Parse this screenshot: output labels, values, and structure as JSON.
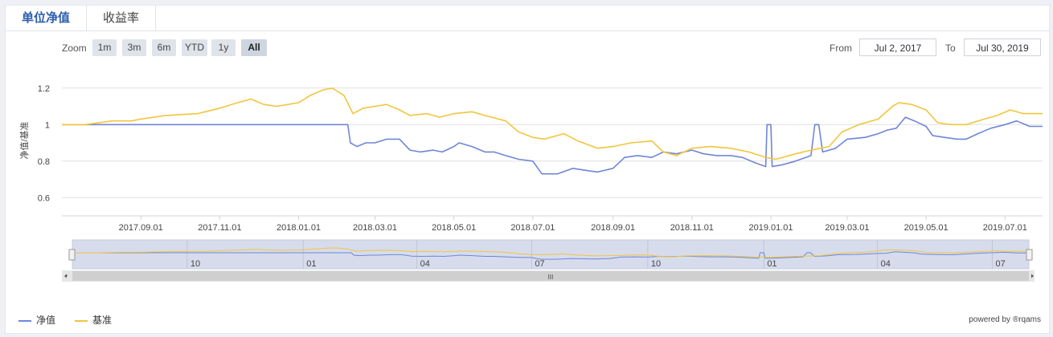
{
  "tabs": [
    {
      "label": "单位净值",
      "active": true
    },
    {
      "label": "收益率",
      "active": false
    }
  ],
  "zoom": {
    "label": "Zoom",
    "buttons": [
      "1m",
      "3m",
      "6m",
      "YTD",
      "1y",
      "All"
    ],
    "selected": "All"
  },
  "range": {
    "from_label": "From",
    "from_value": "Jul 2, 2017",
    "to_label": "To",
    "to_value": "Jul 30, 2019"
  },
  "credit": "powered by ®rqams",
  "colors": {
    "nav": "#6f86d6",
    "benchmark": "#f2c53d"
  },
  "chart_data": {
    "type": "line",
    "ylabel": "净值/基准",
    "ylim": [
      0.5,
      1.3
    ],
    "yticks": [
      0.6,
      0.8,
      1,
      1.2
    ],
    "xlim": [
      "2017-07-02",
      "2019-07-30"
    ],
    "xticks": [
      "2017.09.01",
      "2017.11.01",
      "2018.01.01",
      "2018.03.01",
      "2018.05.01",
      "2018.07.01",
      "2018.09.01",
      "2018.11.01",
      "2019.01.01",
      "2019.03.01",
      "2019.05.01",
      "2019.07.01"
    ],
    "grid": true,
    "legend_position": "bottom-left",
    "series": [
      {
        "name": "净值",
        "points": [
          [
            "2017-07-02",
            1.0
          ],
          [
            "2017-09-01",
            1.0
          ],
          [
            "2017-11-01",
            1.0
          ],
          [
            "2018-01-01",
            1.0
          ],
          [
            "2018-02-08",
            1.0
          ],
          [
            "2018-02-10",
            0.9
          ],
          [
            "2018-02-15",
            0.88
          ],
          [
            "2018-02-22",
            0.9
          ],
          [
            "2018-03-01",
            0.9
          ],
          [
            "2018-03-10",
            0.92
          ],
          [
            "2018-03-20",
            0.92
          ],
          [
            "2018-03-28",
            0.86
          ],
          [
            "2018-04-05",
            0.85
          ],
          [
            "2018-04-15",
            0.86
          ],
          [
            "2018-04-22",
            0.85
          ],
          [
            "2018-05-01",
            0.88
          ],
          [
            "2018-05-05",
            0.9
          ],
          [
            "2018-05-15",
            0.88
          ],
          [
            "2018-05-25",
            0.85
          ],
          [
            "2018-06-01",
            0.85
          ],
          [
            "2018-06-10",
            0.83
          ],
          [
            "2018-06-20",
            0.81
          ],
          [
            "2018-07-01",
            0.8
          ],
          [
            "2018-07-08",
            0.73
          ],
          [
            "2018-07-20",
            0.73
          ],
          [
            "2018-08-01",
            0.76
          ],
          [
            "2018-08-10",
            0.75
          ],
          [
            "2018-08-20",
            0.74
          ],
          [
            "2018-09-01",
            0.76
          ],
          [
            "2018-09-10",
            0.82
          ],
          [
            "2018-09-20",
            0.83
          ],
          [
            "2018-10-01",
            0.82
          ],
          [
            "2018-10-10",
            0.85
          ],
          [
            "2018-10-20",
            0.84
          ],
          [
            "2018-11-01",
            0.86
          ],
          [
            "2018-11-10",
            0.84
          ],
          [
            "2018-11-20",
            0.83
          ],
          [
            "2018-12-01",
            0.83
          ],
          [
            "2018-12-10",
            0.82
          ],
          [
            "2018-12-20",
            0.79
          ],
          [
            "2018-12-28",
            0.77
          ],
          [
            "2018-12-29",
            1.0
          ],
          [
            "2019-01-01",
            1.0
          ],
          [
            "2019-01-02",
            0.77
          ],
          [
            "2019-01-10",
            0.78
          ],
          [
            "2019-01-20",
            0.8
          ],
          [
            "2019-01-28",
            0.82
          ],
          [
            "2019-02-01",
            0.83
          ],
          [
            "2019-02-04",
            1.0
          ],
          [
            "2019-02-07",
            1.0
          ],
          [
            "2019-02-10",
            0.85
          ],
          [
            "2019-02-20",
            0.87
          ],
          [
            "2019-03-01",
            0.92
          ],
          [
            "2019-03-15",
            0.93
          ],
          [
            "2019-03-25",
            0.95
          ],
          [
            "2019-04-01",
            0.97
          ],
          [
            "2019-04-08",
            0.98
          ],
          [
            "2019-04-15",
            1.04
          ],
          [
            "2019-04-22",
            1.02
          ],
          [
            "2019-05-01",
            0.99
          ],
          [
            "2019-05-06",
            0.94
          ],
          [
            "2019-05-15",
            0.93
          ],
          [
            "2019-05-25",
            0.92
          ],
          [
            "2019-06-01",
            0.92
          ],
          [
            "2019-06-10",
            0.95
          ],
          [
            "2019-06-20",
            0.98
          ],
          [
            "2019-07-01",
            1.0
          ],
          [
            "2019-07-10",
            1.02
          ],
          [
            "2019-07-20",
            0.99
          ],
          [
            "2019-07-30",
            0.99
          ]
        ]
      },
      {
        "name": "基准",
        "points": [
          [
            "2017-07-02",
            1.0
          ],
          [
            "2017-07-20",
            1.0
          ],
          [
            "2017-08-10",
            1.02
          ],
          [
            "2017-08-25",
            1.02
          ],
          [
            "2017-09-01",
            1.03
          ],
          [
            "2017-09-20",
            1.05
          ],
          [
            "2017-10-15",
            1.06
          ],
          [
            "2017-11-01",
            1.09
          ],
          [
            "2017-11-15",
            1.12
          ],
          [
            "2017-11-25",
            1.14
          ],
          [
            "2017-12-05",
            1.11
          ],
          [
            "2017-12-15",
            1.1
          ],
          [
            "2018-01-01",
            1.12
          ],
          [
            "2018-01-10",
            1.16
          ],
          [
            "2018-01-20",
            1.19
          ],
          [
            "2018-01-27",
            1.2
          ],
          [
            "2018-02-05",
            1.16
          ],
          [
            "2018-02-12",
            1.06
          ],
          [
            "2018-02-20",
            1.09
          ],
          [
            "2018-03-01",
            1.1
          ],
          [
            "2018-03-10",
            1.11
          ],
          [
            "2018-03-20",
            1.08
          ],
          [
            "2018-03-28",
            1.05
          ],
          [
            "2018-04-10",
            1.06
          ],
          [
            "2018-04-20",
            1.04
          ],
          [
            "2018-05-01",
            1.06
          ],
          [
            "2018-05-15",
            1.07
          ],
          [
            "2018-05-25",
            1.05
          ],
          [
            "2018-06-10",
            1.02
          ],
          [
            "2018-06-20",
            0.96
          ],
          [
            "2018-07-01",
            0.93
          ],
          [
            "2018-07-10",
            0.92
          ],
          [
            "2018-07-25",
            0.95
          ],
          [
            "2018-08-05",
            0.91
          ],
          [
            "2018-08-20",
            0.87
          ],
          [
            "2018-09-01",
            0.88
          ],
          [
            "2018-09-15",
            0.9
          ],
          [
            "2018-10-01",
            0.91
          ],
          [
            "2018-10-10",
            0.85
          ],
          [
            "2018-10-20",
            0.83
          ],
          [
            "2018-11-01",
            0.87
          ],
          [
            "2018-11-15",
            0.88
          ],
          [
            "2018-12-01",
            0.87
          ],
          [
            "2018-12-15",
            0.85
          ],
          [
            "2018-12-28",
            0.82
          ],
          [
            "2019-01-05",
            0.81
          ],
          [
            "2019-01-20",
            0.84
          ],
          [
            "2019-02-01",
            0.86
          ],
          [
            "2019-02-15",
            0.88
          ],
          [
            "2019-02-25",
            0.96
          ],
          [
            "2019-03-10",
            1.0
          ],
          [
            "2019-03-25",
            1.03
          ],
          [
            "2019-04-05",
            1.1
          ],
          [
            "2019-04-10",
            1.12
          ],
          [
            "2019-04-20",
            1.11
          ],
          [
            "2019-05-01",
            1.08
          ],
          [
            "2019-05-10",
            1.01
          ],
          [
            "2019-05-20",
            1.0
          ],
          [
            "2019-06-01",
            1.0
          ],
          [
            "2019-06-15",
            1.03
          ],
          [
            "2019-06-25",
            1.05
          ],
          [
            "2019-07-05",
            1.08
          ],
          [
            "2019-07-15",
            1.06
          ],
          [
            "2019-07-30",
            1.06
          ]
        ]
      }
    ],
    "navigator": {
      "labels": [
        "10",
        "01",
        "04",
        "07",
        "10",
        "01",
        "04",
        "07"
      ],
      "scrollbar_glyph": "III"
    }
  }
}
